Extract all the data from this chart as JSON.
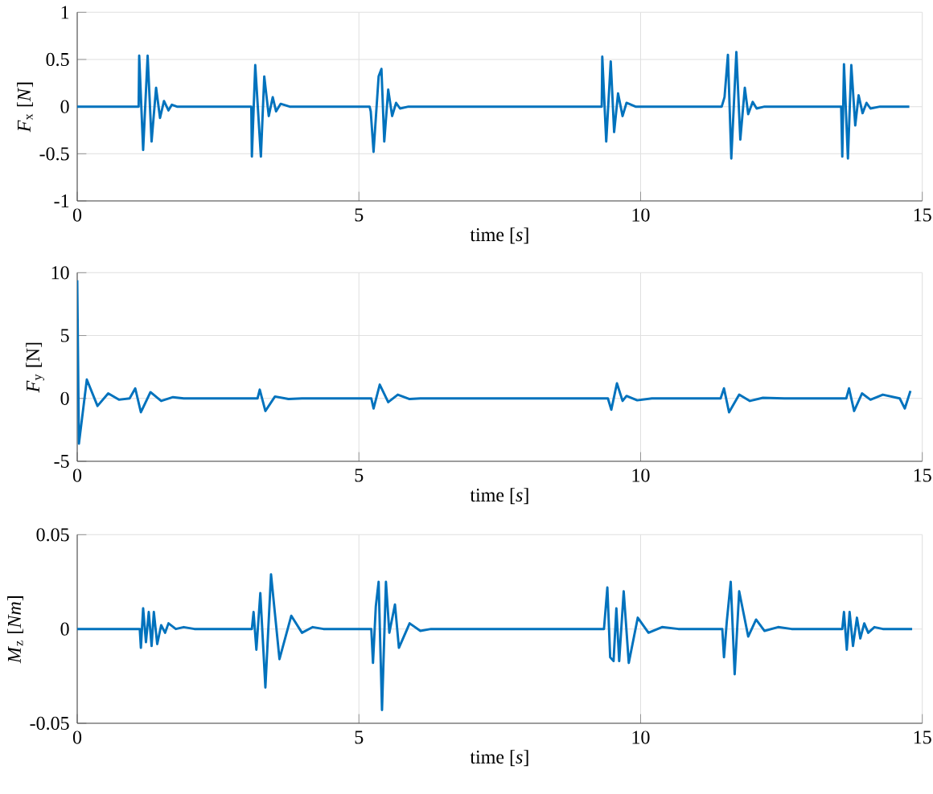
{
  "chart_data": [
    {
      "type": "line",
      "xlabel": "time  [*s*]",
      "ylabel": "*F*$_{x}$  [*N*]",
      "color": "#0072bd",
      "grid": true,
      "xlim": [
        0,
        15
      ],
      "xticks": [
        0,
        5,
        10,
        15
      ],
      "ylim": [
        -1,
        1
      ],
      "yticks": [
        -1,
        -0.5,
        0,
        0.5,
        1
      ],
      "x": [
        0,
        1.09,
        1.1,
        1.17,
        1.25,
        1.32,
        1.4,
        1.47,
        1.54,
        1.62,
        1.68,
        1.77,
        3.09,
        3.1,
        3.16,
        3.26,
        3.32,
        3.4,
        3.47,
        3.53,
        3.61,
        3.77,
        5.19,
        5.21,
        5.26,
        5.35,
        5.4,
        5.45,
        5.52,
        5.59,
        5.66,
        5.73,
        5.88,
        9.31,
        9.32,
        9.39,
        9.47,
        9.53,
        9.6,
        9.68,
        9.75,
        9.91,
        11.44,
        11.49,
        11.55,
        11.61,
        11.7,
        11.77,
        11.85,
        11.91,
        11.99,
        12.06,
        12.2,
        13.56,
        13.58,
        13.61,
        13.68,
        13.74,
        13.81,
        13.87,
        13.94,
        14.01,
        14.08,
        14.25,
        14.77
      ],
      "values": [
        0,
        0,
        0.54,
        -0.46,
        0.54,
        -0.37,
        0.2,
        -0.12,
        0.06,
        -0.04,
        0.02,
        0,
        0,
        -0.53,
        0.44,
        -0.53,
        0.32,
        -0.1,
        0.1,
        -0.05,
        0.03,
        0,
        0,
        -0.05,
        -0.48,
        0.32,
        0.4,
        -0.37,
        0.18,
        -0.1,
        0.04,
        -0.02,
        0,
        0,
        0.53,
        -0.37,
        0.48,
        -0.27,
        0.14,
        -0.1,
        0.04,
        0,
        0,
        0.1,
        0.55,
        -0.55,
        0.58,
        -0.35,
        0.2,
        -0.08,
        0.05,
        -0.02,
        0,
        0,
        -0.53,
        0.45,
        -0.55,
        0.44,
        -0.2,
        0.12,
        -0.07,
        0.04,
        -0.02,
        0,
        0
      ]
    },
    {
      "type": "line",
      "xlabel": "time  [*s*]",
      "ylabel": "*F*$_{y}$  [N]",
      "color": "#0072bd",
      "grid": true,
      "xlim": [
        0,
        15
      ],
      "xticks": [
        0,
        5,
        10,
        15
      ],
      "ylim": [
        -5,
        10
      ],
      "yticks": [
        -5,
        0,
        5,
        10
      ],
      "x": [
        0,
        0.03,
        0.17,
        0.36,
        0.55,
        0.74,
        0.93,
        1.03,
        1.13,
        1.3,
        1.49,
        1.7,
        1.89,
        3.2,
        3.24,
        3.34,
        3.51,
        3.75,
        3.99,
        5.22,
        5.26,
        5.37,
        5.52,
        5.69,
        5.9,
        6.09,
        9.42,
        9.48,
        9.58,
        9.68,
        9.75,
        9.94,
        10.2,
        11.42,
        11.48,
        11.57,
        11.75,
        11.94,
        12.17,
        12.55,
        13.65,
        13.7,
        13.79,
        13.93,
        14.08,
        14.3,
        14.6,
        14.69,
        14.79
      ],
      "values": [
        9.4,
        -3.6,
        1.5,
        -0.6,
        0.4,
        -0.1,
        0,
        0.8,
        -1.1,
        0.5,
        -0.2,
        0.1,
        0,
        0,
        0.7,
        -1.0,
        0.15,
        -0.05,
        0,
        0,
        -0.8,
        1.1,
        -0.3,
        0.3,
        -0.05,
        0,
        0,
        -0.9,
        1.2,
        -0.2,
        0.2,
        -0.15,
        0,
        0,
        0.8,
        -1.1,
        0.3,
        -0.2,
        0.05,
        0,
        0,
        0.8,
        -1.0,
        0.4,
        -0.1,
        0.3,
        0,
        -0.8,
        0.6
      ]
    },
    {
      "type": "line",
      "xlabel": "time  [*s*]",
      "ylabel": "*M*$_{z}$  [*Nm*]",
      "color": "#0072bd",
      "grid": true,
      "xlim": [
        0,
        15
      ],
      "xticks": [
        0,
        5,
        10,
        15
      ],
      "ylim": [
        -0.05,
        0.05
      ],
      "yticks": [
        -0.05,
        0,
        0.05
      ],
      "x": [
        0,
        1.11,
        1.13,
        1.17,
        1.22,
        1.27,
        1.32,
        1.36,
        1.42,
        1.49,
        1.56,
        1.62,
        1.75,
        1.89,
        2.08,
        3.1,
        3.13,
        3.18,
        3.25,
        3.34,
        3.44,
        3.59,
        3.8,
        3.99,
        4.18,
        4.37,
        5.22,
        5.25,
        5.3,
        5.35,
        5.41,
        5.48,
        5.54,
        5.64,
        5.71,
        5.9,
        6.09,
        6.28,
        9.35,
        9.41,
        9.46,
        9.52,
        9.57,
        9.62,
        9.7,
        9.79,
        9.95,
        10.14,
        10.38,
        10.67,
        11.45,
        11.48,
        11.53,
        11.6,
        11.67,
        11.75,
        11.91,
        12.05,
        12.2,
        12.44,
        12.68,
        13.58,
        13.61,
        13.66,
        13.71,
        13.77,
        13.84,
        13.9,
        13.97,
        14.04,
        14.15,
        14.3,
        14.82
      ],
      "values": [
        0,
        0,
        -0.01,
        0.011,
        -0.007,
        0.009,
        -0.009,
        0.009,
        -0.008,
        0.002,
        -0.002,
        0.003,
        0,
        0.001,
        0,
        0,
        0.009,
        -0.011,
        0.019,
        -0.031,
        0.029,
        -0.016,
        0.007,
        -0.002,
        0.001,
        0,
        0,
        -0.018,
        0.012,
        0.025,
        -0.043,
        0.025,
        -0.002,
        0.013,
        -0.01,
        0.003,
        -0.001,
        0,
        0,
        0.022,
        -0.015,
        -0.017,
        0.011,
        -0.017,
        0.02,
        -0.018,
        0.006,
        -0.002,
        0.001,
        0,
        0,
        -0.015,
        0.004,
        0.025,
        -0.024,
        0.02,
        -0.004,
        0.005,
        -0.001,
        0.001,
        0,
        0,
        0.009,
        -0.011,
        0.009,
        -0.009,
        0.006,
        -0.005,
        0.003,
        -0.002,
        0.001,
        0,
        0
      ]
    }
  ]
}
